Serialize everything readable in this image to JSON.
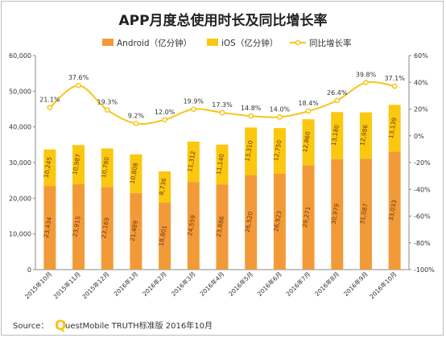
{
  "chart_data": {
    "type": "bar",
    "title": "APP月度总使用时长及同比增长率",
    "categories": [
      "2015年10月",
      "2015年11月",
      "2015年12月",
      "2016年1月",
      "2016年2月",
      "2016年3月",
      "2016年4月",
      "2016年5月",
      "2016年6月",
      "2016年7月",
      "2016年8月",
      "2016年9月",
      "2016年10月"
    ],
    "stacked": true,
    "series": [
      {
        "name": "Android（亿分钟）",
        "color": "#f39a38",
        "values": [
          23434,
          23915,
          23169,
          21489,
          18801,
          24559,
          23886,
          26520,
          26923,
          29271,
          30979,
          31087,
          33033
        ]
      },
      {
        "name": "iOS（亿分钟）",
        "color": "#fbc70f",
        "values": [
          10245,
          10987,
          10780,
          10808,
          8736,
          11312,
          11140,
          13310,
          12750,
          12860,
          13180,
          12986,
          13139
        ]
      },
      {
        "name": "同比增长率",
        "type": "line",
        "axis": "right",
        "color": "#f6c61b",
        "values": [
          21.1,
          37.6,
          19.3,
          9.2,
          12.0,
          19.9,
          17.3,
          14.8,
          14.0,
          18.4,
          26.4,
          39.8,
          37.1
        ]
      }
    ],
    "pct_labels": [
      "21.1%",
      "37.6%",
      "19.3%",
      "9.2%",
      "12.0%",
      "19.9%",
      "17.3%",
      "14.8%",
      "14.0%",
      "18.4%",
      "26.4%",
      "39.8%",
      "37.1%"
    ],
    "value_labels_android": [
      "23,434",
      "23,915",
      "23,169",
      "21,489",
      "18,801",
      "24,559",
      "23,886",
      "26,520",
      "26,923",
      "29,271",
      "30,979",
      "31,087",
      "33,033"
    ],
    "value_labels_ios": [
      "10,245",
      "10,987",
      "10,780",
      "10,808",
      "8,736",
      "11,312",
      "11,140",
      "13,310",
      "12,750",
      "12,860",
      "13,180",
      "12,986",
      "13,139"
    ],
    "ylim_left": [
      0,
      60000
    ],
    "ylim_right": [
      -100,
      60
    ],
    "yticks_left": [
      "0",
      "10,000",
      "20,000",
      "30,000",
      "40,000",
      "50,000",
      "60,000"
    ],
    "yticks_right": [
      "-100%",
      "-80%",
      "-60%",
      "-40%",
      "-20%",
      "0%",
      "20%",
      "40%",
      "60%"
    ],
    "legend_position": "top-center",
    "grid": false
  },
  "source": {
    "prefix": "Source：",
    "brand_initial": "Q",
    "brand_rest": "uestMobile TRUTH标准版 2016年10月"
  }
}
